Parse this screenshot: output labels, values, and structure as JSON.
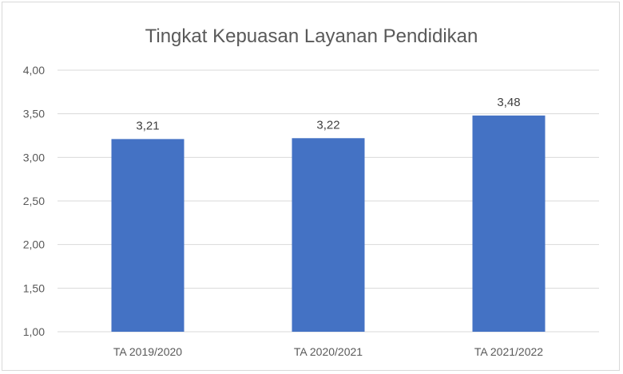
{
  "chart_data": {
    "type": "bar",
    "title": "Tingkat Kepuasan Layanan Pendidikan",
    "categories": [
      "TA 2019/2020",
      "TA 2020/2021",
      "TA 2021/2022"
    ],
    "values": [
      3.21,
      3.22,
      3.48
    ],
    "value_labels": [
      "3,21",
      "3,22",
      "3,48"
    ],
    "ylim": [
      1.0,
      4.0
    ],
    "y_ticks": [
      1.0,
      1.5,
      2.0,
      2.5,
      3.0,
      3.5,
      4.0
    ],
    "y_tick_labels": [
      "1,00",
      "1,50",
      "2,00",
      "2,50",
      "3,00",
      "3,50",
      "4,00"
    ],
    "grid": true,
    "bar_color": "#4472C4",
    "grid_color": "#d9d9d9",
    "legend": "none"
  }
}
